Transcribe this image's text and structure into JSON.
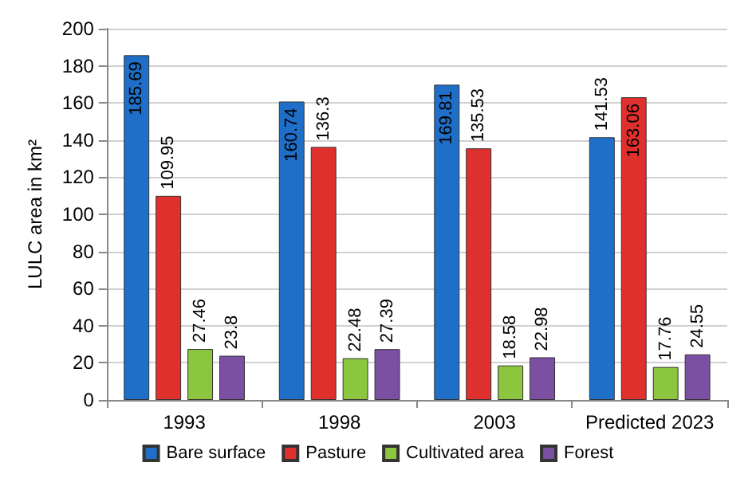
{
  "chart_data": {
    "type": "bar",
    "ylabel": "LULC area in km²",
    "categories": [
      "1993",
      "1998",
      "2003",
      "Predicted 2023"
    ],
    "series": [
      {
        "name": "Bare surface",
        "color": "#1f6fc8",
        "values": [
          185.69,
          160.74,
          169.81,
          141.53
        ]
      },
      {
        "name": "Pasture",
        "color": "#e0302e",
        "values": [
          109.95,
          136.3,
          135.53,
          163.06
        ]
      },
      {
        "name": "Cultivated area",
        "color": "#8cc63e",
        "values": [
          27.46,
          22.48,
          18.58,
          17.76
        ]
      },
      {
        "name": "Forest",
        "color": "#7b4fa2",
        "values": [
          23.8,
          27.39,
          22.98,
          24.55
        ]
      }
    ],
    "ylim": [
      0,
      200
    ],
    "yticks": [
      0,
      20,
      40,
      60,
      80,
      100,
      120,
      140,
      160,
      180,
      200
    ],
    "grid": "y",
    "legend": "bottom",
    "data_labels": true
  }
}
